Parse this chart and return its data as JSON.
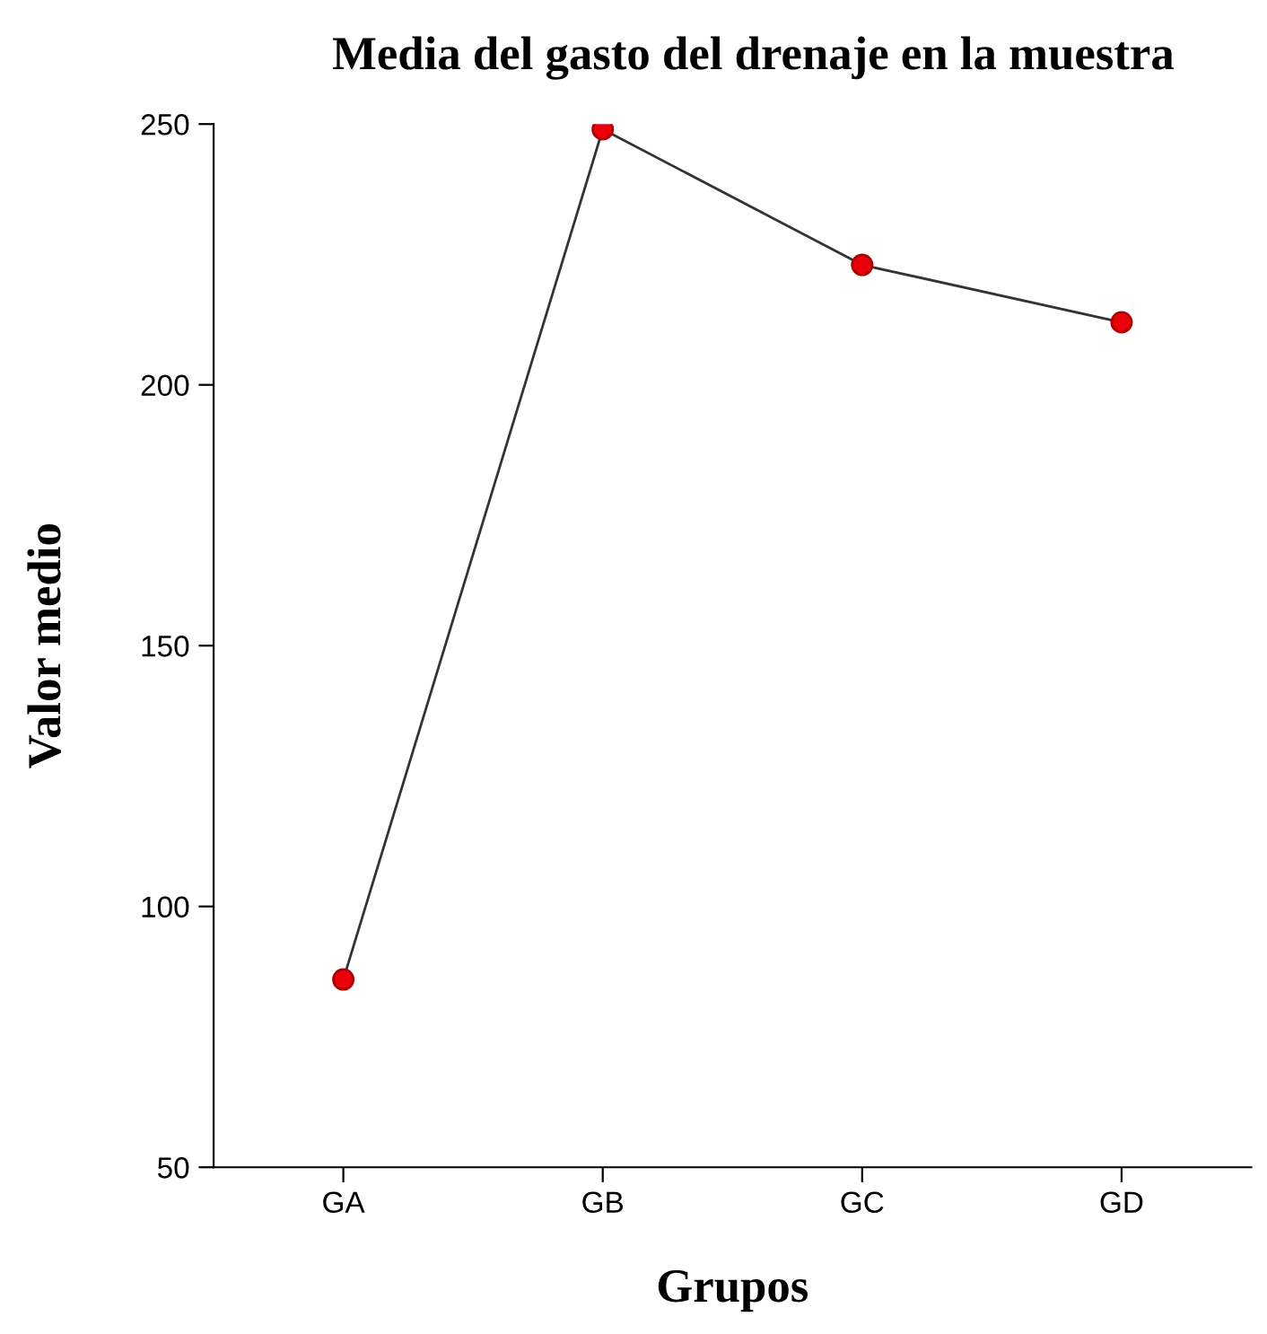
{
  "chart_data": {
    "type": "line",
    "title": "Media del gasto del drenaje en la muestra",
    "xlabel": "Grupos",
    "ylabel": "Valor medio",
    "categories": [
      "GA",
      "GB",
      "GC",
      "GD"
    ],
    "series": [
      {
        "color": "#333333",
        "values": [
          86,
          249,
          223,
          212
        ]
      }
    ],
    "marker": "circle",
    "line_style": "solid",
    "grid": false,
    "legend": false,
    "ylim": [
      50,
      250
    ],
    "yticks": [
      50,
      100,
      150,
      200,
      250
    ]
  }
}
